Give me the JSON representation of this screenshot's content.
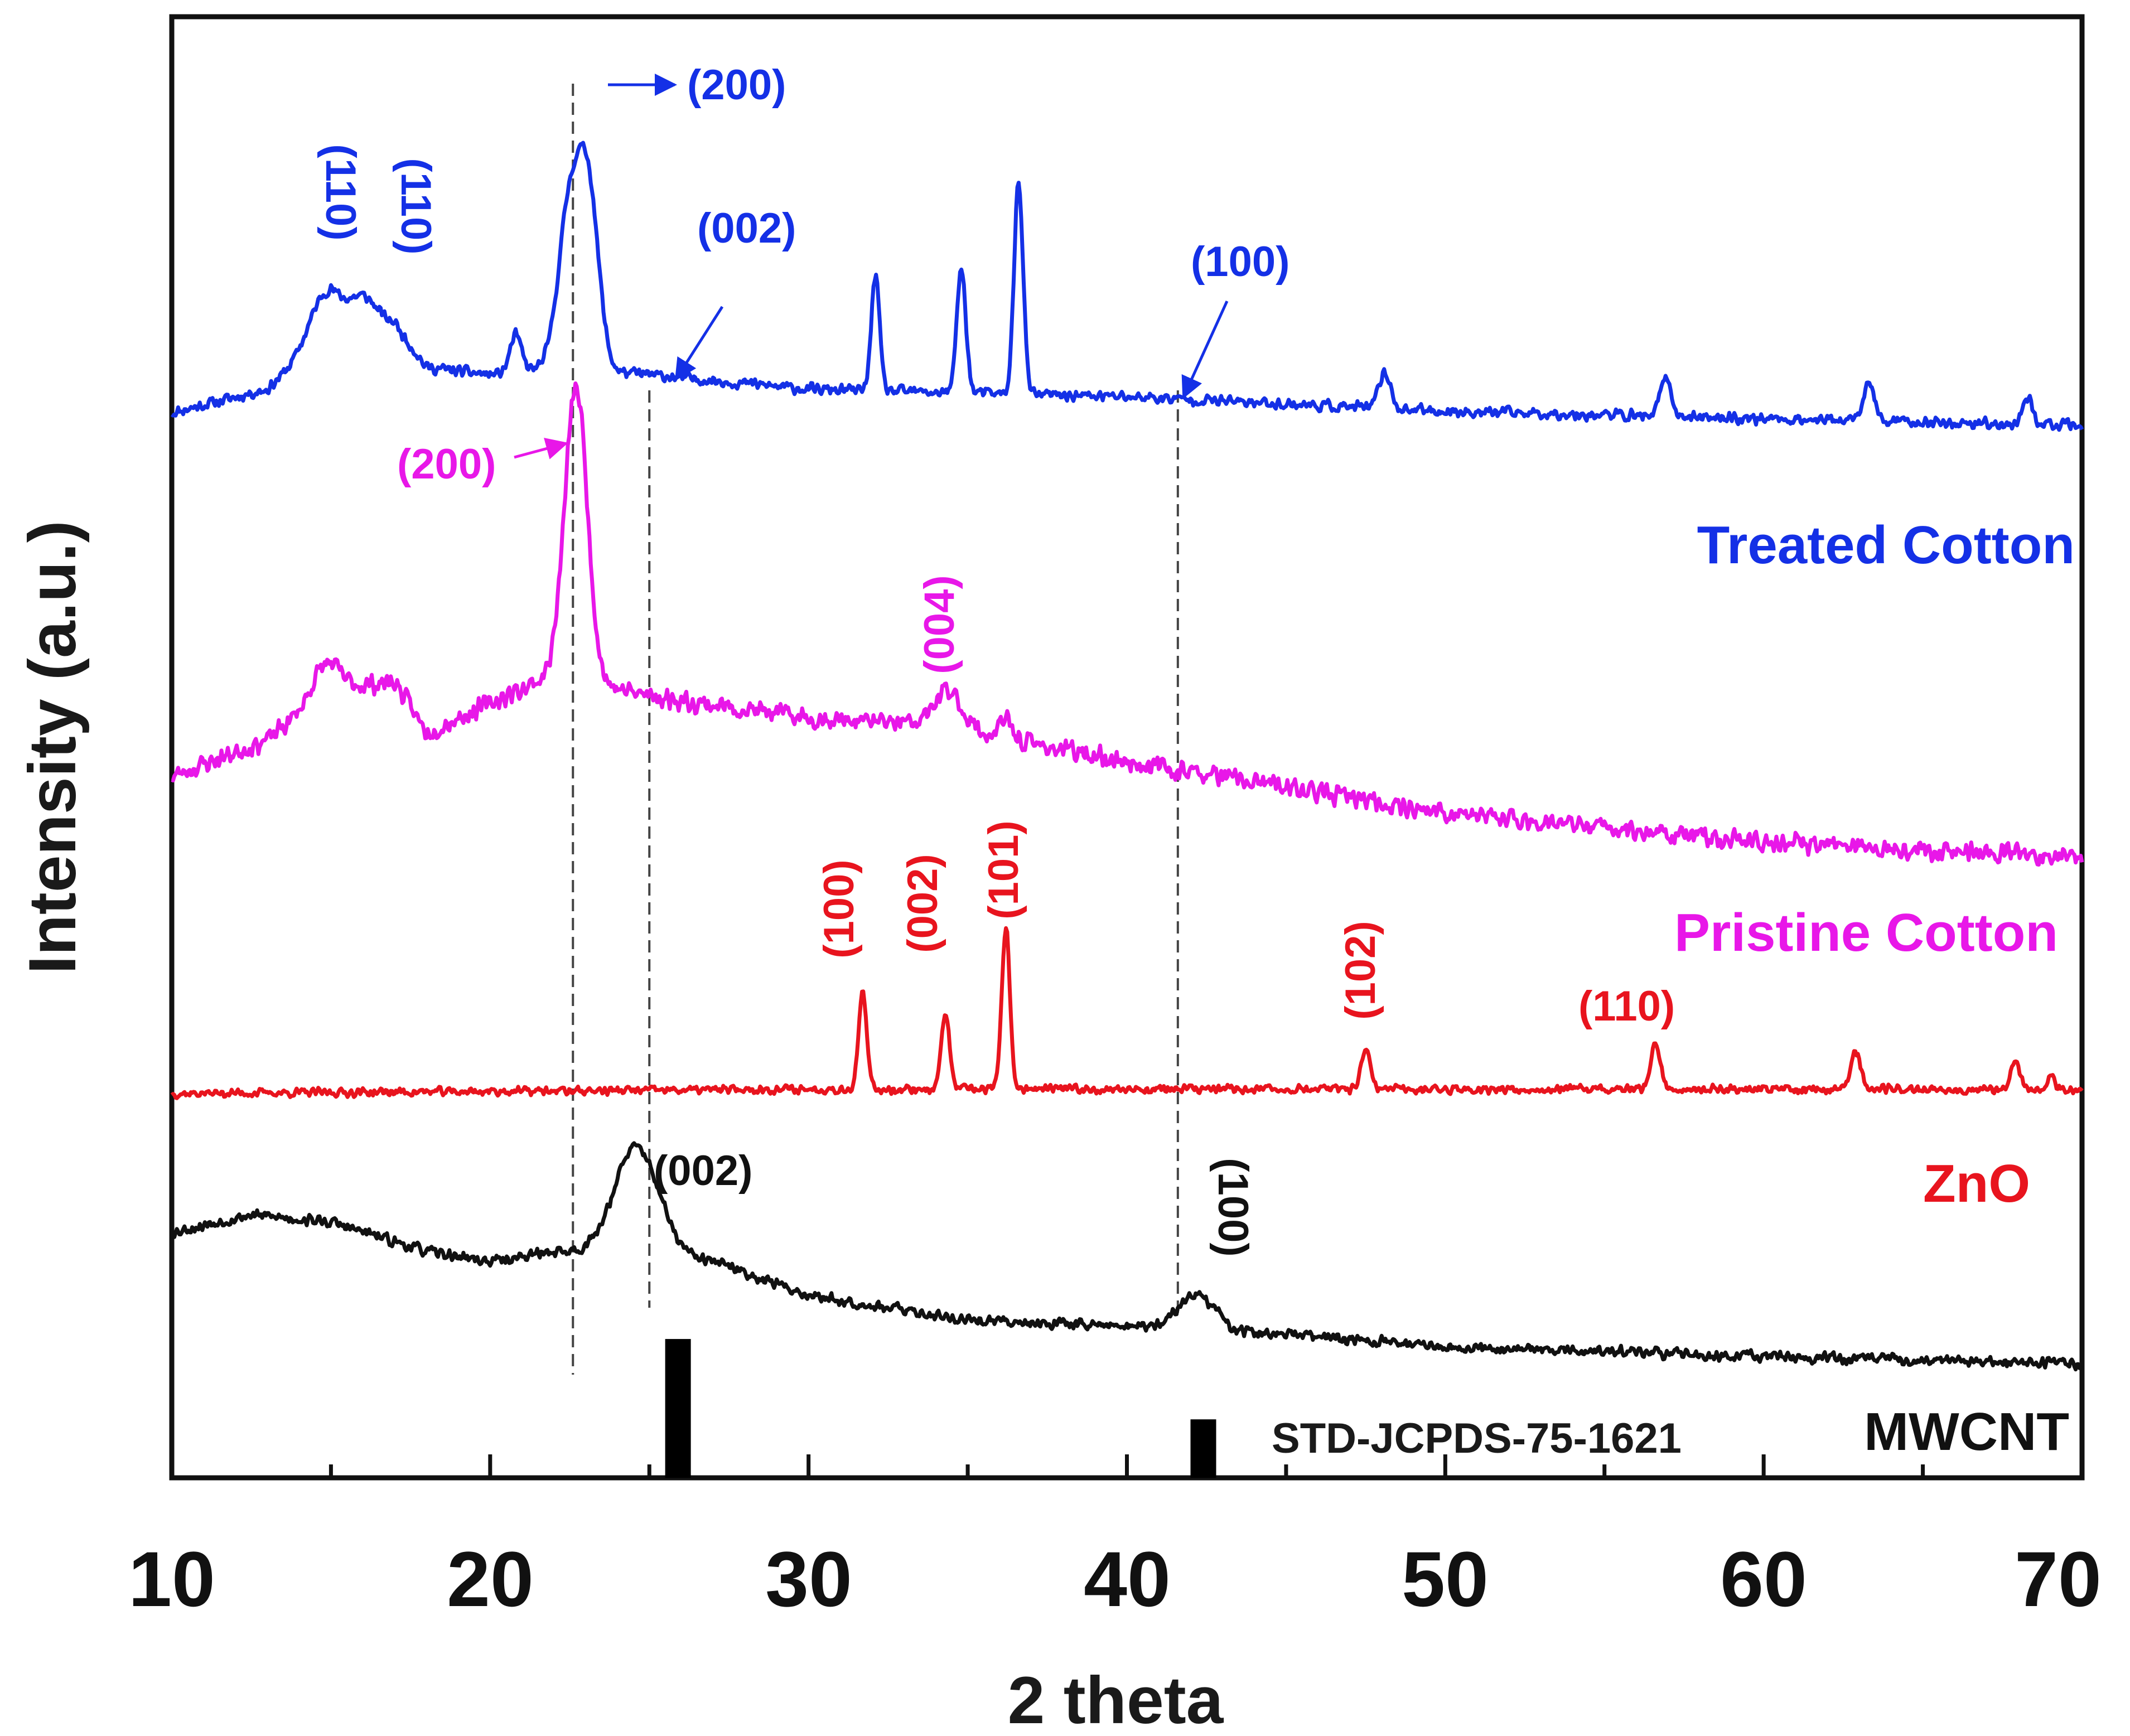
{
  "chart_data": {
    "type": "line",
    "title": "",
    "xlabel": "2 theta",
    "ylabel": "Intensity (a.u.)",
    "xlim": [
      10,
      70
    ],
    "ylim": [
      0,
      100
    ],
    "xticks": [
      10,
      20,
      30,
      40,
      50,
      60,
      70
    ],
    "xtick_labels": [
      "10",
      "20",
      "30",
      "40",
      "50",
      "60",
      "70"
    ],
    "grid": false,
    "legend": "none",
    "series": [
      {
        "name": "Treated Cotton",
        "color": "#1430e6",
        "baseline": [
          [
            10,
            72.9
          ],
          [
            13,
            74.5
          ],
          [
            15,
            78.5
          ],
          [
            17,
            79.0
          ],
          [
            18,
            76.0
          ],
          [
            20,
            75.5
          ],
          [
            22,
            76.0
          ],
          [
            25,
            75.5
          ],
          [
            30,
            74.5
          ],
          [
            40,
            74.0
          ],
          [
            50,
            73.0
          ],
          [
            60,
            72.5
          ],
          [
            70,
            72.0
          ]
        ],
        "peaks": [
          {
            "x": 14.8,
            "h": 3.0,
            "w": 0.7
          },
          {
            "x": 16.0,
            "h": 2.0,
            "w": 0.6
          },
          {
            "x": 20.8,
            "h": 2.5,
            "w": 0.25
          },
          {
            "x": 22.5,
            "h": 11.0,
            "w": 0.5
          },
          {
            "x": 23.1,
            "h": 11.5,
            "w": 0.45
          },
          {
            "x": 32.1,
            "h": 8.0,
            "w": 0.18
          },
          {
            "x": 34.8,
            "h": 8.5,
            "w": 0.2
          },
          {
            "x": 36.6,
            "h": 14.5,
            "w": 0.2
          },
          {
            "x": 48.1,
            "h": 2.5,
            "w": 0.25
          },
          {
            "x": 56.9,
            "h": 2.5,
            "w": 0.25
          },
          {
            "x": 63.3,
            "h": 2.5,
            "w": 0.25
          },
          {
            "x": 68.3,
            "h": 1.8,
            "w": 0.22
          }
        ],
        "noise": 0.45,
        "seed": 11
      },
      {
        "name": "Pristine Cotton",
        "color": "#e817e8",
        "baseline": [
          [
            10,
            48.0
          ],
          [
            13,
            50.5
          ],
          [
            15,
            54.0
          ],
          [
            17,
            54.5
          ],
          [
            18,
            51.0
          ],
          [
            20,
            53.0
          ],
          [
            22,
            55.0
          ],
          [
            25,
            53.5
          ],
          [
            30,
            52.0
          ],
          [
            34,
            51.5
          ],
          [
            40,
            49.0
          ],
          [
            50,
            45.5
          ],
          [
            60,
            43.5
          ],
          [
            70,
            42.5
          ]
        ],
        "peaks": [
          {
            "x": 14.8,
            "h": 2.0,
            "w": 0.6
          },
          {
            "x": 22.7,
            "h": 20.0,
            "w": 0.5
          },
          {
            "x": 34.4,
            "h": 2.5,
            "w": 0.6
          },
          {
            "x": 36.2,
            "h": 1.2,
            "w": 0.3
          }
        ],
        "noise": 0.8,
        "seed": 23
      },
      {
        "name": "ZnO",
        "color": "#e8141e",
        "baseline": [
          [
            10,
            26.3
          ],
          [
            30,
            26.6
          ],
          [
            40,
            26.6
          ],
          [
            50,
            26.6
          ],
          [
            60,
            26.6
          ],
          [
            70,
            26.6
          ]
        ],
        "peaks": [
          {
            "x": 31.7,
            "h": 6.5,
            "w": 0.18
          },
          {
            "x": 34.3,
            "h": 5.2,
            "w": 0.18
          },
          {
            "x": 36.2,
            "h": 11.0,
            "w": 0.18
          },
          {
            "x": 47.5,
            "h": 2.6,
            "w": 0.2
          },
          {
            "x": 56.6,
            "h": 3.0,
            "w": 0.22
          },
          {
            "x": 62.9,
            "h": 2.6,
            "w": 0.22
          },
          {
            "x": 67.9,
            "h": 2.0,
            "w": 0.2
          },
          {
            "x": 69.0,
            "h": 1.0,
            "w": 0.15
          }
        ],
        "noise": 0.35,
        "seed": 37
      },
      {
        "name": "MWCNT",
        "color": "#111111",
        "baseline": [
          [
            10,
            16.8
          ],
          [
            12.5,
            18.0
          ],
          [
            15,
            17.5
          ],
          [
            18,
            15.5
          ],
          [
            20,
            14.8
          ],
          [
            22,
            15.5
          ],
          [
            27,
            14.8
          ],
          [
            30,
            12.5
          ],
          [
            35,
            10.8
          ],
          [
            40,
            10.4
          ],
          [
            45,
            9.8
          ],
          [
            50,
            9.0
          ],
          [
            60,
            8.3
          ],
          [
            70,
            7.8
          ]
        ],
        "peaks": [
          {
            "x": 24.6,
            "h": 7.5,
            "w": 1.0
          },
          {
            "x": 42.2,
            "h": 2.4,
            "w": 0.8
          }
        ],
        "noise": 0.45,
        "seed": 53
      }
    ],
    "reference_bars": {
      "name": "STD-JCPDS-75-1621",
      "color": "#000000",
      "bars": [
        {
          "x": 25.9,
          "height": 9.5
        },
        {
          "x": 42.4,
          "height": 4.0
        }
      ]
    },
    "dashed_lines": [
      22.6,
      25.0,
      41.6
    ],
    "curve_labels": [
      {
        "text": "Treated  Cotton",
        "color": "#1430e6"
      },
      {
        "text": "Pristine Cotton",
        "color": "#e817e8"
      },
      {
        "text": "ZnO",
        "color": "#e8141e"
      },
      {
        "text": "MWCNT",
        "color": "#111111"
      }
    ],
    "annotations": [
      {
        "text": "(110)",
        "color": "#1430e6",
        "rotated": true
      },
      {
        "text": "(110)",
        "color": "#1430e6",
        "rotated": true
      },
      {
        "text": "(200)",
        "color": "#1430e6",
        "rotated": false
      },
      {
        "text": "(002)",
        "color": "#1430e6",
        "rotated": false
      },
      {
        "text": "(100)",
        "color": "#1430e6",
        "rotated": false
      },
      {
        "text": "(200)",
        "color": "#e817e8",
        "rotated": false
      },
      {
        "text": "(004)",
        "color": "#e817e8",
        "rotated": true
      },
      {
        "text": "(100)",
        "color": "#e8141e",
        "rotated": true
      },
      {
        "text": "(002)",
        "color": "#e8141e",
        "rotated": true
      },
      {
        "text": "(101)",
        "color": "#e8141e",
        "rotated": true
      },
      {
        "text": "(102)",
        "color": "#e8141e",
        "rotated": true
      },
      {
        "text": "(110)",
        "color": "#e8141e",
        "rotated": false
      },
      {
        "text": "(002)",
        "color": "#111111",
        "rotated": false
      },
      {
        "text": "(100)",
        "color": "#111111",
        "rotated": true
      }
    ]
  }
}
